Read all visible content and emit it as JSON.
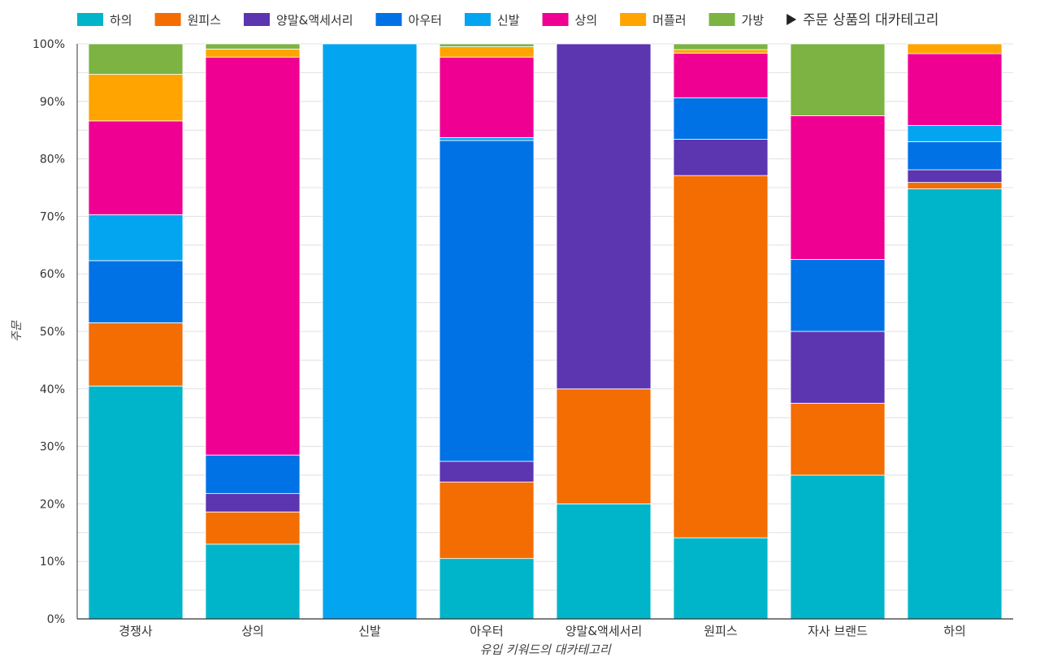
{
  "chart_data": {
    "type": "bar",
    "stacked": true,
    "normalized": true,
    "legend_title": "주문 상품의 대카테고리",
    "legend_more_icon": "play-triangle-icon",
    "xlabel": "유입 키워드의 대카테고리",
    "ylabel": "주문",
    "ylim": [
      0,
      100
    ],
    "y_ticks": [
      "0%",
      "10%",
      "20%",
      "30%",
      "40%",
      "50%",
      "60%",
      "70%",
      "80%",
      "90%",
      "100%"
    ],
    "categories": [
      "경쟁사",
      "상의",
      "신발",
      "아우터",
      "양말&액세서리",
      "원피스",
      "자사 브랜드",
      "하의"
    ],
    "series": [
      {
        "name": "하의",
        "color": "#00b5c9",
        "values": [
          40.5,
          13.0,
          0,
          10.5,
          20.0,
          14.1,
          25.0,
          74.8
        ]
      },
      {
        "name": "원피스",
        "color": "#f46d03",
        "values": [
          11.0,
          5.6,
          0,
          13.3,
          20.0,
          63.0,
          12.5,
          1.1
        ]
      },
      {
        "name": "양말&액세서리",
        "color": "#5c35b0",
        "values": [
          0,
          3.2,
          0,
          3.6,
          60.0,
          6.3,
          12.5,
          2.2
        ]
      },
      {
        "name": "아우터",
        "color": "#0072e6",
        "values": [
          10.8,
          6.7,
          0,
          55.8,
          0,
          7.2,
          12.5,
          4.9
        ]
      },
      {
        "name": "신발",
        "color": "#04a5f0",
        "values": [
          8.0,
          0,
          100.0,
          0.5,
          0,
          0,
          0,
          2.8
        ]
      },
      {
        "name": "상의",
        "color": "#ef0092",
        "values": [
          16.3,
          69.2,
          0,
          14.0,
          0,
          7.8,
          25.0,
          12.5
        ]
      },
      {
        "name": "머플러",
        "color": "#ffa400",
        "values": [
          8.1,
          1.4,
          0,
          1.8,
          0,
          0.6,
          0,
          1.7
        ]
      },
      {
        "name": "가방",
        "color": "#7cb342",
        "values": [
          5.3,
          0.9,
          0,
          0.5,
          0,
          1.0,
          12.5,
          0
        ]
      }
    ]
  }
}
